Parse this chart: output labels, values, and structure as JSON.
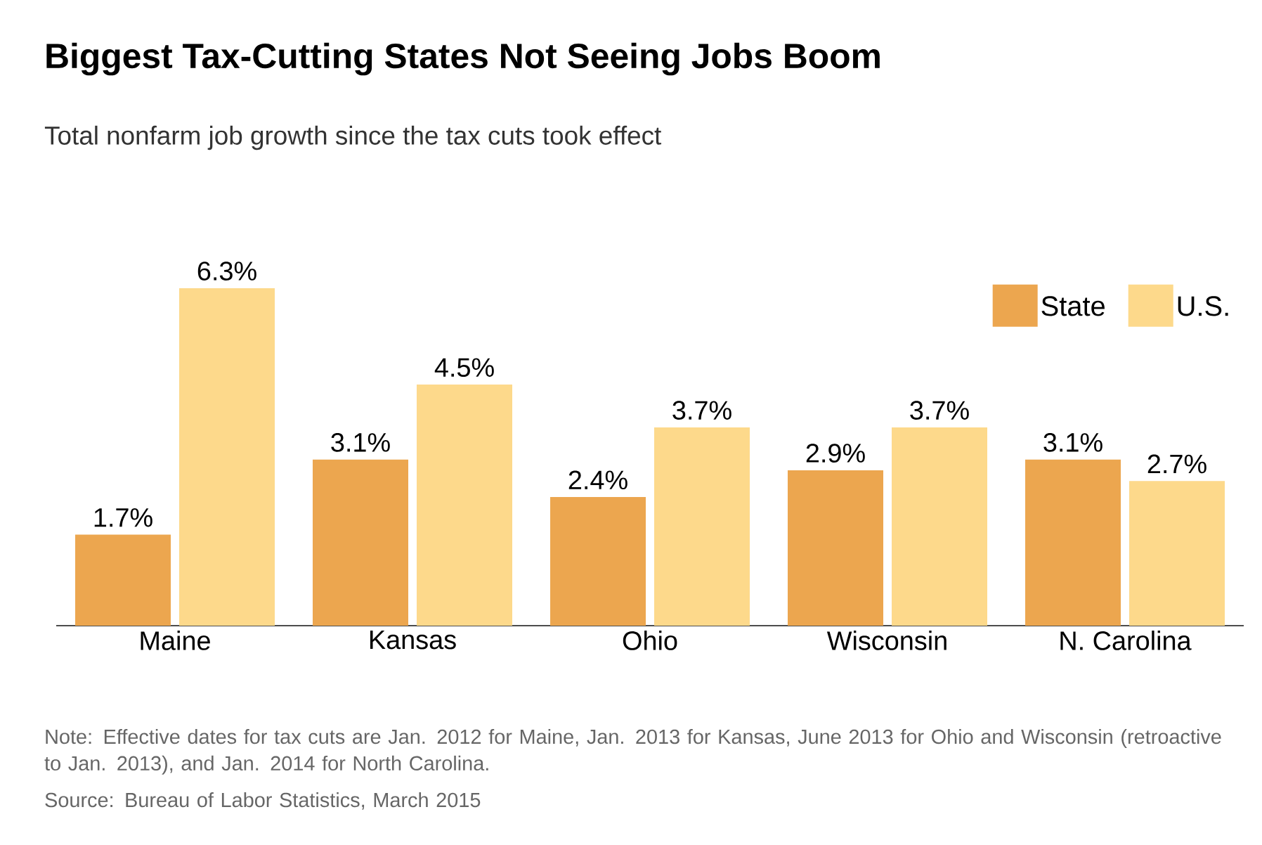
{
  "chart_data": {
    "type": "bar",
    "title": "Biggest Tax-Cutting States Not Seeing Jobs Boom",
    "subtitle": "Total nonfarm job growth since the tax cuts took effect",
    "categories": [
      "Maine",
      "Kansas",
      "Ohio",
      "Wisconsin",
      "N. Carolina"
    ],
    "series": [
      {
        "name": "State",
        "color": "#eca64f",
        "values": [
          1.7,
          3.1,
          2.4,
          2.9,
          3.1
        ],
        "value_labels": [
          "1.7%",
          "3.1%",
          "2.4%",
          "2.9%",
          "3.1%"
        ]
      },
      {
        "name": "U.S.",
        "color": "#fdd98b",
        "values": [
          6.3,
          4.5,
          3.7,
          3.7,
          2.7
        ],
        "value_labels": [
          "6.3%",
          "4.5%",
          "3.7%",
          "3.7%",
          "2.7%"
        ]
      }
    ],
    "ylim": [
      0,
      6.3
    ],
    "tick_labels": "x",
    "legend": "top right",
    "grid": false,
    "annotations": [
      "Note: Effective dates for tax cuts are Jan. 2012 for Maine, Jan. 2013 for Kansas, June 2013 for Ohio and Wisconsin (retroactive to Jan. 2013), and Jan. 2014 for North Carolina.",
      "Source: Bureau of Labor Statistics, March 2015"
    ]
  }
}
